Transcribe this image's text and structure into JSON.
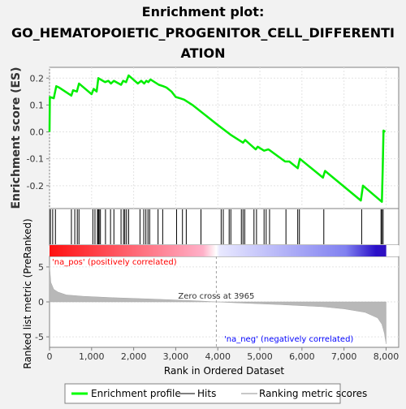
{
  "chart_data": {
    "type": "line",
    "title_lines": [
      "Enrichment plot:",
      "GO_HEMATOPOIETIC_PROGENITOR_CELL_DIFFERENTI",
      "ATION"
    ],
    "xlabel": "Rank in Ordered Dataset",
    "es_ylabel": "Enrichment score (ES)",
    "metric_ylabel": "Ranked list metric (PreRanked)",
    "xlim": [
      0,
      8300
    ],
    "x_ticks": [
      0,
      1000,
      2000,
      3000,
      4000,
      5000,
      6000,
      7000,
      8000
    ],
    "x_tick_labels": [
      "0",
      "1,000",
      "2,000",
      "3,000",
      "4,000",
      "5,000",
      "6,000",
      "7,000",
      "8,000"
    ],
    "es_ylim": [
      -0.285,
      0.24
    ],
    "es_ticks": [
      0.2,
      0.1,
      0.0,
      -0.1,
      -0.2
    ],
    "es_tick_labels": [
      "0.2",
      "0.1",
      "0.0",
      "-0.1",
      "-0.2"
    ],
    "metric_ylim": [
      -6.5,
      6.5
    ],
    "metric_ticks": [
      5,
      0,
      -5
    ],
    "metric_tick_labels": [
      "5",
      "0",
      "-5"
    ],
    "zero_cross_rank": 3965,
    "zero_cross_label": "Zero cross at 3965",
    "pos_label": "'na_pos' (positively correlated)",
    "neg_label": "'na_neg' (negatively correlated)",
    "legend": [
      {
        "label": "Enrichment profile",
        "color": "#00ff00"
      },
      {
        "label": "Hits",
        "color": "#808080"
      },
      {
        "label": "Ranking metric scores",
        "color": "#c8c8c8"
      }
    ],
    "enrichment_profile": [
      [
        0,
        0.0
      ],
      [
        8,
        0.13
      ],
      [
        100,
        0.125
      ],
      [
        160,
        0.17
      ],
      [
        230,
        0.165
      ],
      [
        520,
        0.135
      ],
      [
        560,
        0.155
      ],
      [
        650,
        0.15
      ],
      [
        700,
        0.18
      ],
      [
        1000,
        0.14
      ],
      [
        1050,
        0.16
      ],
      [
        1120,
        0.15
      ],
      [
        1160,
        0.2
      ],
      [
        1320,
        0.185
      ],
      [
        1400,
        0.19
      ],
      [
        1460,
        0.18
      ],
      [
        1530,
        0.19
      ],
      [
        1700,
        0.175
      ],
      [
        1750,
        0.19
      ],
      [
        1820,
        0.185
      ],
      [
        1880,
        0.21
      ],
      [
        2100,
        0.18
      ],
      [
        2180,
        0.19
      ],
      [
        2250,
        0.18
      ],
      [
        2300,
        0.19
      ],
      [
        2350,
        0.185
      ],
      [
        2400,
        0.195
      ],
      [
        2600,
        0.175
      ],
      [
        2700,
        0.17
      ],
      [
        2780,
        0.165
      ],
      [
        2900,
        0.15
      ],
      [
        3000,
        0.13
      ],
      [
        3100,
        0.125
      ],
      [
        3200,
        0.12
      ],
      [
        3400,
        0.1
      ],
      [
        3965,
        0.03
      ],
      [
        4300,
        -0.01
      ],
      [
        4600,
        -0.04
      ],
      [
        4650,
        -0.03
      ],
      [
        4900,
        -0.065
      ],
      [
        4950,
        -0.055
      ],
      [
        5100,
        -0.07
      ],
      [
        5200,
        -0.065
      ],
      [
        5250,
        -0.07
      ],
      [
        5600,
        -0.11
      ],
      [
        5700,
        -0.11
      ],
      [
        5900,
        -0.135
      ],
      [
        5950,
        -0.1
      ],
      [
        6500,
        -0.17
      ],
      [
        6550,
        -0.145
      ],
      [
        7400,
        -0.255
      ],
      [
        7450,
        -0.2
      ],
      [
        7900,
        -0.26
      ],
      [
        7920,
        -0.14
      ],
      [
        7940,
        0.005
      ],
      [
        7980,
        0.0
      ]
    ],
    "hits": [
      20,
      75,
      140,
      520,
      600,
      660,
      700,
      1030,
      1080,
      1140,
      1160,
      1180,
      1210,
      1330,
      1450,
      1530,
      1700,
      1760,
      1790,
      1830,
      1880,
      2150,
      2240,
      2290,
      2340,
      2380,
      2580,
      2690,
      3020,
      3160,
      3250,
      3600,
      4080,
      4130,
      4270,
      4310,
      4560,
      4600,
      4640,
      4860,
      4920,
      5100,
      5150,
      5230,
      5620,
      5900,
      5940,
      6520,
      7420,
      7880,
      7900,
      7930
    ],
    "metric_profile": [
      [
        0,
        5.2
      ],
      [
        30,
        2.8
      ],
      [
        100,
        1.8
      ],
      [
        200,
        1.4
      ],
      [
        400,
        1.0
      ],
      [
        800,
        0.8
      ],
      [
        1500,
        0.6
      ],
      [
        2500,
        0.4
      ],
      [
        3500,
        0.15
      ],
      [
        3965,
        0.0
      ],
      [
        4500,
        -0.15
      ],
      [
        5500,
        -0.4
      ],
      [
        6500,
        -0.7
      ],
      [
        7000,
        -1.0
      ],
      [
        7500,
        -1.5
      ],
      [
        7800,
        -2.3
      ],
      [
        7900,
        -3.2
      ],
      [
        7960,
        -4.5
      ],
      [
        8000,
        -6.0
      ]
    ]
  }
}
